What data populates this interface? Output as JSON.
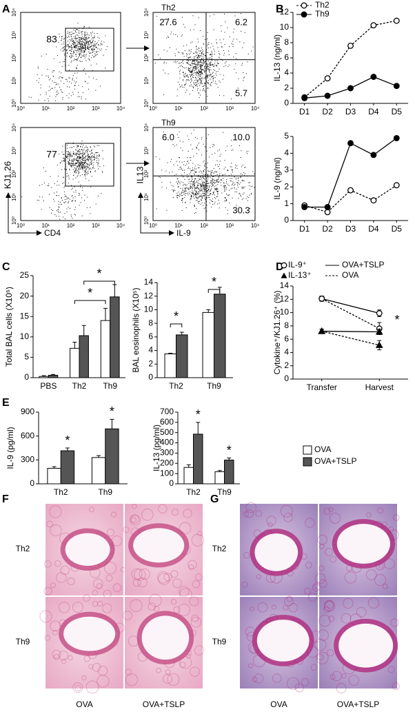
{
  "panels": {
    "A": "A",
    "B": "B",
    "C": "C",
    "D": "D",
    "E": "E",
    "F": "F",
    "G": "G"
  },
  "flow_ticks": [
    "10⁰",
    "10¹",
    "10²",
    "10³",
    "10⁴"
  ],
  "flow": [
    {
      "gate": "83"
    },
    {
      "title": "Th2",
      "quadrants": [
        "27.6",
        "6.2",
        "5.7"
      ]
    },
    {
      "gate": "77",
      "ylabel": "KJ1.26",
      "xlabel": "CD4"
    },
    {
      "title": "Th9",
      "quadrants": [
        "6.0",
        "10.0",
        "30.3"
      ],
      "ylabel": "IL13",
      "xlabel": "IL-9"
    }
  ],
  "chart_data": [
    {
      "type": "line",
      "ylabel": "IL-13 (ng/ml)",
      "categories": [
        "D1",
        "D2",
        "D3",
        "D4",
        "D5"
      ],
      "ylim": [
        0,
        12
      ],
      "yticks": [
        0,
        2,
        4,
        6,
        8,
        10,
        12
      ],
      "legend": "upper left",
      "series": [
        {
          "name": "Th2",
          "color": "#000000",
          "marker": "circle",
          "filled": false,
          "dashed": true,
          "values": [
            0.8,
            3.3,
            7.6,
            10.3,
            10.9
          ]
        },
        {
          "name": "Th9",
          "color": "#000000",
          "marker": "circle",
          "filled": true,
          "dashed": false,
          "values": [
            0.7,
            1.0,
            2.0,
            3.5,
            2.3
          ]
        }
      ]
    },
    {
      "type": "line",
      "ylabel": "IL-9 (ng/ml)",
      "categories": [
        "D1",
        "D2",
        "D3",
        "D4",
        "D5"
      ],
      "ylim": [
        0,
        5
      ],
      "yticks": [
        0,
        1,
        2,
        3,
        4,
        5
      ],
      "series": [
        {
          "color": "#000000",
          "marker": "circle",
          "filled": false,
          "dashed": true,
          "values": [
            0.9,
            0.5,
            1.8,
            1.2,
            2.1
          ]
        },
        {
          "color": "#000000",
          "marker": "circle",
          "filled": true,
          "dashed": false,
          "values": [
            0.8,
            0.8,
            4.6,
            3.9,
            4.9
          ]
        }
      ]
    },
    {
      "type": "bar",
      "ylabel": "Total BAL cells (X10⁵)",
      "categories": [
        "PBS",
        "Th2",
        "Th9"
      ],
      "ylim": [
        0,
        25
      ],
      "yticks": [
        0,
        5,
        10,
        15,
        20,
        25
      ],
      "annotations": [
        "*",
        "*"
      ],
      "series": [
        {
          "color": "#ffffff",
          "values": [
            0.3,
            7.2,
            14
          ],
          "errors": [
            0.2,
            1.5,
            3
          ]
        },
        {
          "color": "#555555",
          "values": [
            0.6,
            10.3,
            19.8
          ],
          "errors": [
            0.2,
            2.5,
            3
          ]
        }
      ]
    },
    {
      "type": "bar",
      "ylabel": "BAL eosinophils (X10⁵)",
      "categories": [
        "Th2",
        "Th9"
      ],
      "ylim": [
        0,
        14
      ],
      "yticks": [
        0,
        2,
        4,
        6,
        8,
        10,
        12,
        14
      ],
      "annotations": [
        "*",
        "*"
      ],
      "series": [
        {
          "color": "#ffffff",
          "values": [
            3.5,
            9.6
          ],
          "errors": [
            0.1,
            0.4
          ]
        },
        {
          "color": "#555555",
          "values": [
            6.3,
            12.3
          ],
          "errors": [
            0.4,
            1.0
          ]
        }
      ]
    },
    {
      "type": "line",
      "ylabel": "Cytokine⁺/KJ1.26⁺ (%)",
      "categories": [
        "Transfer",
        "Harvest"
      ],
      "ylim": [
        0,
        14
      ],
      "yticks": [
        0,
        2,
        4,
        6,
        8,
        10,
        12,
        14
      ],
      "annotations": [
        "*"
      ],
      "legend_items": [
        {
          "label": "IL-9⁺",
          "marker": "circle"
        },
        {
          "label": "IL-13⁺",
          "marker": "triangle"
        },
        {
          "label": "OVA+TSLP",
          "dashed": false
        },
        {
          "label": "OVA",
          "dashed": true
        }
      ],
      "series": [
        {
          "color": "#000000",
          "marker": "circle",
          "filled": false,
          "dashed": false,
          "values": [
            12.1,
            9.9
          ],
          "errors": [
            0.4,
            0.5
          ]
        },
        {
          "color": "#000000",
          "marker": "circle",
          "filled": false,
          "dashed": true,
          "values": [
            12.1,
            7.6
          ],
          "errors": [
            0.4,
            0.9
          ]
        },
        {
          "color": "#000000",
          "marker": "triangle",
          "filled": true,
          "dashed": false,
          "values": [
            7.2,
            7.1
          ],
          "errors": [
            0.3,
            0.4
          ]
        },
        {
          "color": "#000000",
          "marker": "triangle",
          "filled": true,
          "dashed": true,
          "values": [
            7.2,
            5.1
          ],
          "errors": [
            0.3,
            0.7
          ]
        }
      ]
    },
    {
      "type": "bar",
      "ylabel": "IL-9 (pg/ml)",
      "categories": [
        "Th2",
        "Th9"
      ],
      "ylim": [
        0,
        900
      ],
      "yticks": [
        0,
        300,
        600,
        900
      ],
      "annotations": [
        "*",
        "*"
      ],
      "series": [
        {
          "name": "OVA",
          "color": "#ffffff",
          "values": [
            195,
            330
          ],
          "errors": [
            20,
            25
          ]
        },
        {
          "name": "OVA+TSLP",
          "color": "#555555",
          "values": [
            415,
            690
          ],
          "errors": [
            35,
            120
          ]
        }
      ]
    },
    {
      "type": "bar",
      "ylabel": "IL-13 (pg/ml)",
      "categories": [
        "Th2",
        "Th9"
      ],
      "ylim": [
        0,
        700
      ],
      "yticks": [
        0,
        100,
        200,
        300,
        400,
        500,
        600,
        700
      ],
      "annotations": [
        "*",
        "*"
      ],
      "series": [
        {
          "color": "#ffffff",
          "values": [
            160,
            118
          ],
          "errors": [
            25,
            12
          ]
        },
        {
          "color": "#555555",
          "values": [
            485,
            232
          ],
          "errors": [
            115,
            20
          ]
        }
      ]
    }
  ],
  "histology": {
    "F": {
      "rows": [
        "Th2",
        "Th9"
      ],
      "columns": [
        "OVA",
        "OVA+TSLP"
      ]
    },
    "G": {
      "rows": [
        "Th2",
        "Th9"
      ],
      "columns": [
        "OVA",
        "OVA+TSLP"
      ]
    }
  }
}
